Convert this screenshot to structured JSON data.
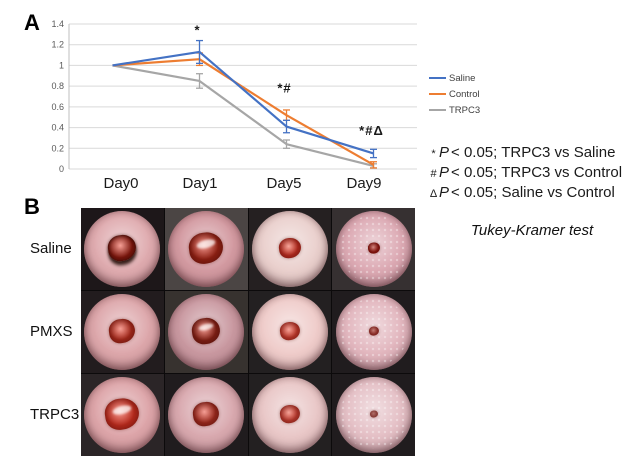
{
  "figure": {
    "panel_a_label": "A",
    "panel_b_label": "B"
  },
  "chart_data": {
    "type": "line",
    "title": "",
    "xlabel": "",
    "ylabel": "",
    "categories": [
      "Day0",
      "Day1",
      "Day5",
      "Day9"
    ],
    "series": [
      {
        "name": "Saline",
        "color": "#4472c4",
        "values": [
          1.0,
          1.13,
          0.41,
          0.15
        ],
        "errors": [
          0,
          0.11,
          0.06,
          0.04
        ]
      },
      {
        "name": "Control",
        "color": "#ed7d31",
        "values": [
          1.0,
          1.06,
          0.52,
          0.04
        ],
        "errors": [
          0,
          0.06,
          0.05,
          0.03
        ]
      },
      {
        "name": "TRPC3",
        "color": "#a6a6a6",
        "values": [
          1.0,
          0.85,
          0.24,
          0.03
        ],
        "errors": [
          0,
          0.07,
          0.04,
          0.02
        ]
      }
    ],
    "ylim": [
      0,
      1.4
    ],
    "yticks": [
      0,
      0.2,
      0.4,
      0.6,
      0.8,
      1,
      1.2,
      1.4
    ],
    "ytick_labels": [
      "0",
      "0.2",
      "0.4",
      "0.6",
      "0.8",
      "1",
      "1.2",
      "1.4"
    ],
    "grid": true,
    "legend_position": "right",
    "annotations": [
      {
        "text": "*",
        "category_index": 1,
        "y": 1.3
      },
      {
        "text": "*#",
        "category_index": 2,
        "y": 0.74
      },
      {
        "text": "*#Δ",
        "category_index": 3,
        "y": 0.33
      }
    ]
  },
  "panel_a": {
    "legend": [
      {
        "label": "Saline",
        "color": "#4472c4"
      },
      {
        "label": "Control",
        "color": "#ed7d31"
      },
      {
        "label": "TRPC3",
        "color": "#a6a6a6"
      }
    ],
    "stats": {
      "lines": [
        {
          "marker": "*",
          "p": "P",
          "rest": "< 0.05; TRPC3 vs Saline"
        },
        {
          "marker": "#",
          "p": "P",
          "rest": "< 0.05; TRPC3 vs Control"
        },
        {
          "marker": "Δ",
          "p": "P",
          "rest": "< 0.05; Saline vs Control"
        }
      ],
      "test_name": "Tukey-Kramer test"
    }
  },
  "panel_b": {
    "columns": [
      "Day0",
      "Day1",
      "Day5",
      "Day9"
    ],
    "rows": [
      {
        "label": "Saline",
        "cells": [
          {
            "day": "Day0",
            "bg": "#1d1719",
            "disc": "#dfabaf",
            "wound": "#77150c",
            "wound_r": 14,
            "crust": true,
            "gloss": false,
            "speckle": false
          },
          {
            "day": "Day1",
            "bg": "#4b4544",
            "disc": "#d39aa1",
            "wound": "#8e2013",
            "wound_r": 17,
            "crust": false,
            "gloss": true,
            "speckle": false
          },
          {
            "day": "Day5",
            "bg": "#252021",
            "disc": "#ead0cd",
            "wound": "#bb2d20",
            "wound_r": 11,
            "crust": false,
            "gloss": false,
            "speckle": false
          },
          {
            "day": "Day9",
            "bg": "#363031",
            "disc": "#dca9b3",
            "wound": "#9c1a13",
            "wound_r": 6,
            "crust": false,
            "gloss": false,
            "speckle": true
          }
        ]
      },
      {
        "label": "PMXS",
        "cells": [
          {
            "day": "Day0",
            "bg": "#221c1e",
            "disc": "#dda7ab",
            "wound": "#a62a1c",
            "wound_r": 13,
            "crust": false,
            "gloss": false,
            "speckle": false
          },
          {
            "day": "Day1",
            "bg": "#37322f",
            "disc": "#c998a0",
            "wound": "#802015",
            "wound_r": 14,
            "crust": false,
            "gloss": true,
            "speckle": false
          },
          {
            "day": "Day5",
            "bg": "#232021",
            "disc": "#efccca",
            "wound": "#c43a2c",
            "wound_r": 10,
            "crust": false,
            "gloss": false,
            "speckle": false
          },
          {
            "day": "Day9",
            "bg": "#201c1e",
            "disc": "#e2b6be",
            "wound": "#b23f38",
            "wound_r": 5,
            "crust": false,
            "gloss": false,
            "speckle": true
          }
        ]
      },
      {
        "label": "TRPC3",
        "cells": [
          {
            "day": "Day0",
            "bg": "#2b2527",
            "disc": "#dda5a9",
            "wound": "#b82a1d",
            "wound_r": 17,
            "crust": false,
            "gloss": true,
            "speckle": false
          },
          {
            "day": "Day1",
            "bg": "#201c1e",
            "disc": "#d9a9af",
            "wound": "#9c2a1e",
            "wound_r": 13,
            "crust": false,
            "gloss": false,
            "speckle": false
          },
          {
            "day": "Day5",
            "bg": "#232021",
            "disc": "#e9c7c7",
            "wound": "#c23d30",
            "wound_r": 10,
            "crust": false,
            "gloss": false,
            "speckle": false
          },
          {
            "day": "Day9",
            "bg": "#201c1e",
            "disc": "#e4bfc5",
            "wound": "#c5635c",
            "wound_r": 4,
            "crust": false,
            "gloss": false,
            "speckle": true
          }
        ]
      }
    ]
  }
}
